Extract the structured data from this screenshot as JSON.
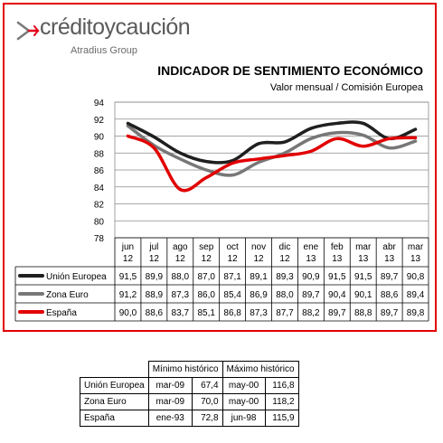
{
  "brand": {
    "name": "créditoycaución",
    "sub": "Atradius Group",
    "accent": "#e2001a"
  },
  "chart_data": {
    "type": "line",
    "title": "INDICADOR DE SENTIMIENTO ECONÓMICO",
    "subtitle": "Valor mensual / Comisión Europea",
    "categories": [
      [
        "jun",
        "12"
      ],
      [
        "jul",
        "12"
      ],
      [
        "ago",
        "12"
      ],
      [
        "sep",
        "12"
      ],
      [
        "oct",
        "12"
      ],
      [
        "nov",
        "12"
      ],
      [
        "dic",
        "12"
      ],
      [
        "ene",
        "13"
      ],
      [
        "feb",
        "13"
      ],
      [
        "mar",
        "13"
      ],
      [
        "abr",
        "13"
      ],
      [
        "mar",
        "13"
      ]
    ],
    "ylim": [
      78,
      94
    ],
    "yticks": [
      78,
      80,
      82,
      84,
      86,
      88,
      90,
      92,
      94
    ],
    "grid": true,
    "series": [
      {
        "name": "Unión Europea",
        "color": "#1f1f1f",
        "values": [
          91.5,
          89.9,
          88.0,
          87.0,
          87.1,
          89.1,
          89.3,
          90.9,
          91.5,
          91.5,
          89.7,
          90.8
        ],
        "labels": [
          "91,5",
          "89,9",
          "88,0",
          "87,0",
          "87,1",
          "89,1",
          "89,3",
          "90,9",
          "91,5",
          "91,5",
          "89,7",
          "90,8"
        ]
      },
      {
        "name": "Zona Euro",
        "color": "#777777",
        "values": [
          91.2,
          88.9,
          87.3,
          86.0,
          85.4,
          86.9,
          88.0,
          89.7,
          90.4,
          90.1,
          88.6,
          89.4
        ],
        "labels": [
          "91,2",
          "88,9",
          "87,3",
          "86,0",
          "85,4",
          "86,9",
          "88,0",
          "89,7",
          "90,4",
          "90,1",
          "88,6",
          "89,4"
        ]
      },
      {
        "name": "España",
        "color": "#e20000",
        "values": [
          90.0,
          88.6,
          83.7,
          85.1,
          86.8,
          87.3,
          87.7,
          88.2,
          89.7,
          88.8,
          89.7,
          89.8
        ],
        "labels": [
          "90,0",
          "88,6",
          "83,7",
          "85,1",
          "86,8",
          "87,3",
          "87,7",
          "88,2",
          "89,7",
          "88,8",
          "89,7",
          "89,8"
        ]
      }
    ]
  },
  "extremes_table": {
    "headers": [
      "Mínimo histórico",
      "Máximo histórico"
    ],
    "rows": [
      {
        "name": "Unión Europea",
        "min_period": "mar-09",
        "min_value": "67,4",
        "max_period": "may-00",
        "max_value": "116,8"
      },
      {
        "name": "Zona Euro",
        "min_period": "mar-09",
        "min_value": "70,0",
        "max_period": "may-00",
        "max_value": "118,2"
      },
      {
        "name": "España",
        "min_period": "ene-93",
        "min_value": "72,8",
        "max_period": "jun-98",
        "max_value": "115,9"
      }
    ]
  }
}
